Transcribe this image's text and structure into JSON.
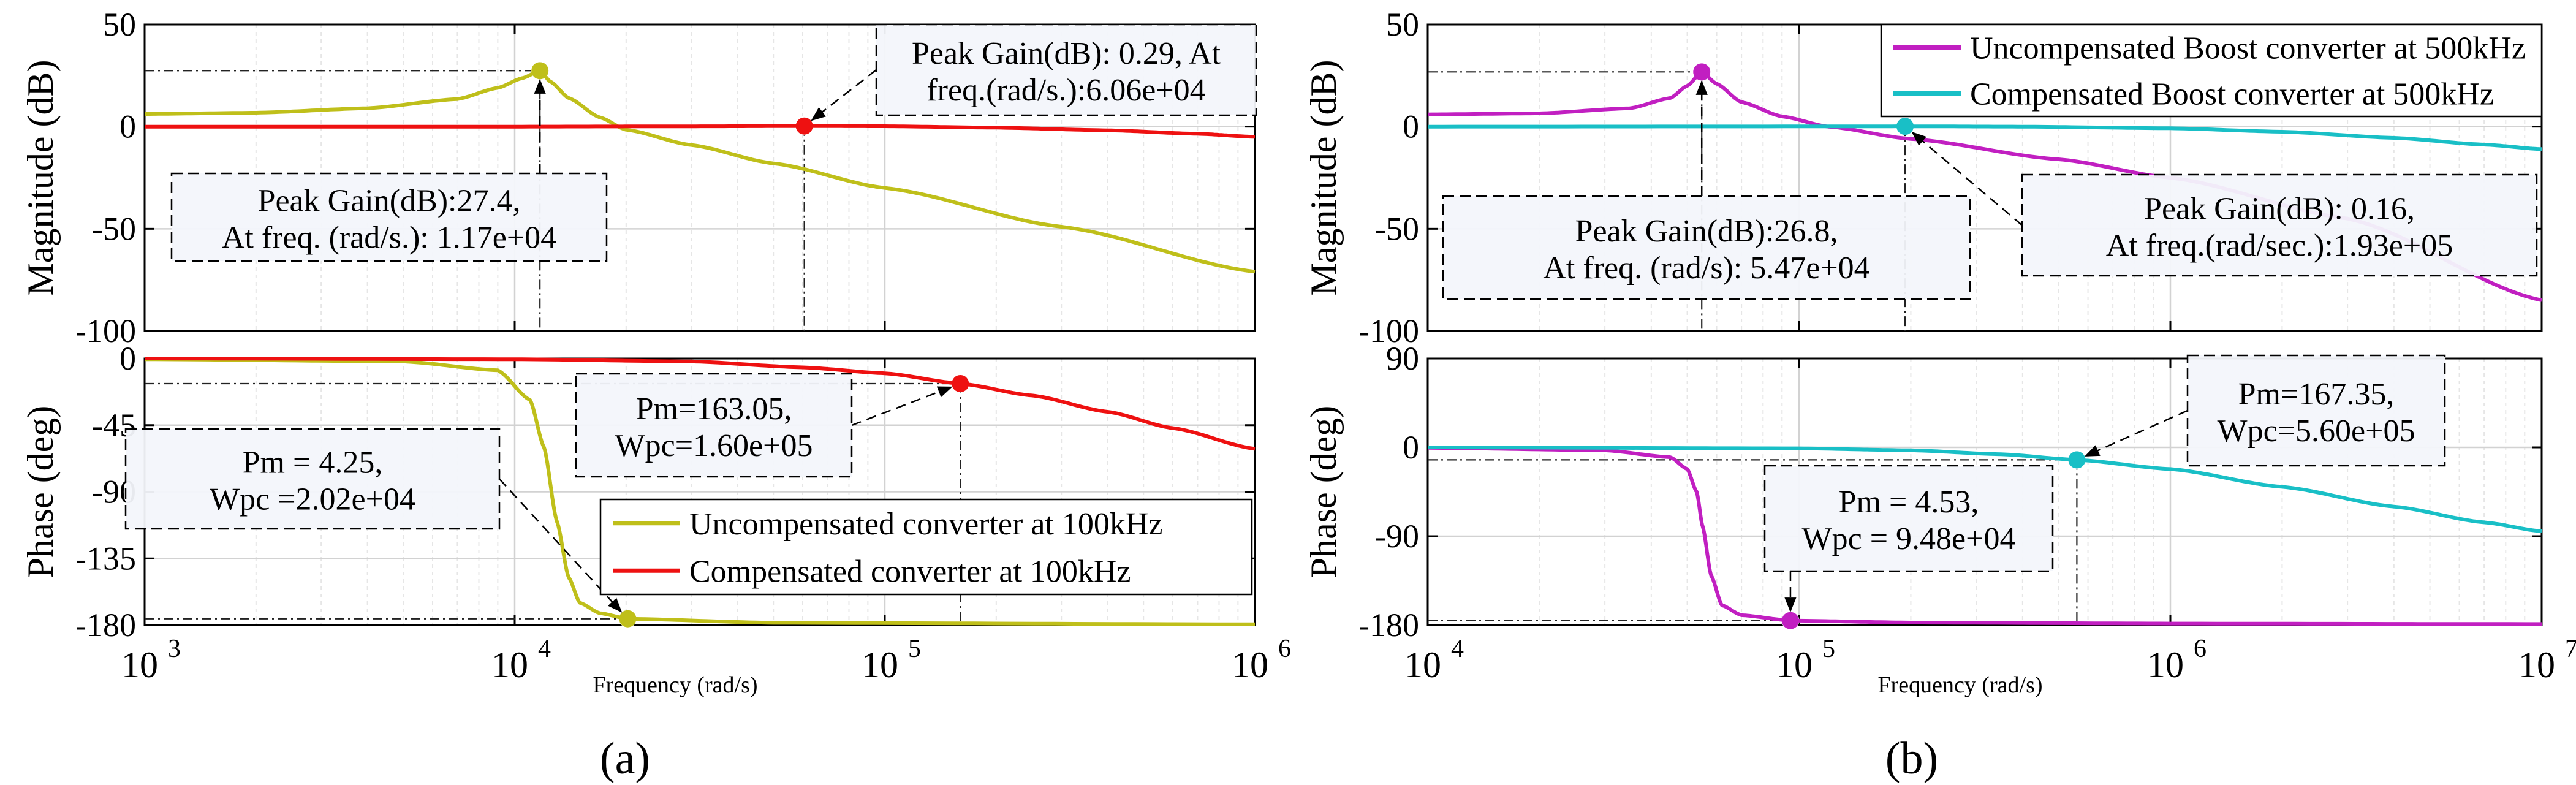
{
  "figure": {
    "panel_labels": [
      "(a)",
      "(b)"
    ],
    "colors": {
      "uncomp_a": "#bfbf1a",
      "comp_a": "#ee1111",
      "uncomp_b": "#c11fc1",
      "comp_b": "#19bfc6",
      "grid": "#dedede",
      "axis": "#000000"
    }
  },
  "chart_data": [
    {
      "id": "a",
      "type": "line",
      "subtype": "bode",
      "panel_label": "(a)",
      "xscale": "log",
      "xlim": [
        1000,
        1000000
      ],
      "xticks": [
        {
          "value": 1000,
          "base": "10",
          "exp": "3"
        },
        {
          "value": 10000,
          "base": "10",
          "exp": "4"
        },
        {
          "value": 100000,
          "base": "10",
          "exp": "5"
        },
        {
          "value": 1000000,
          "base": "10",
          "exp": "6"
        }
      ],
      "xlabel": "Frequency  (rad/s)",
      "legend_location": "lower-right of phase plot",
      "magnitude": {
        "ylabel": "Magnitude (dB)",
        "ylim": [
          -100,
          50
        ],
        "yticks": [
          50,
          0,
          -50,
          -100
        ],
        "series": [
          {
            "name": "Uncompensated converter at 100kHz",
            "color": "#bfbf1a",
            "x": [
              1000,
              2000,
              4000,
              7000,
              9000,
              10500,
              11700,
              12500,
              14000,
              17000,
              20000,
              30000,
              50000,
              100000,
              300000,
              1000000
            ],
            "y": [
              6.2,
              6.8,
              9,
              13.5,
              19,
              23.8,
              27.4,
              22,
              14,
              4.5,
              -1.5,
              -9,
              -18,
              -30,
              -49,
              -71
            ]
          },
          {
            "name": "Compensated converter at 100kHz",
            "color": "#ee1111",
            "x": [
              1000,
              10000,
              30000,
              60600,
              100000,
              200000,
              400000,
              700000,
              1000000
            ],
            "y": [
              0,
              0,
              0.15,
              0.29,
              0.2,
              -0.5,
              -1.8,
              -3.5,
              -5
            ]
          }
        ],
        "markers": [
          {
            "series": 0,
            "x": 11700,
            "y": 27.4
          },
          {
            "series": 1,
            "x": 60600,
            "y": 0.29
          }
        ],
        "annotations": [
          {
            "lines": [
              "Peak Gain(dB):27.4,",
              "At freq. (rad/s.): 1.17e+04"
            ],
            "target": {
              "x": 11700,
              "y": 27.4
            }
          },
          {
            "lines": [
              "Peak Gain(dB): 0.29, At",
              "freq.(rad/s.):6.06e+04"
            ],
            "target": {
              "x": 60600,
              "y": 0.29
            }
          }
        ]
      },
      "phase": {
        "ylabel": "Phase (deg)",
        "ylim": [
          -180,
          0
        ],
        "yticks": [
          0,
          -45,
          -90,
          -135,
          -180
        ],
        "series": [
          {
            "name": "Uncompensated converter at 100kHz",
            "color": "#bfbf1a",
            "x": [
              1000,
              5000,
              9000,
              11000,
              12000,
              13000,
              14000,
              15000,
              17000,
              20200,
              50000,
              1000000
            ],
            "y": [
              -0.5,
              -2,
              -8,
              -28,
              -60,
              -110,
              -148,
              -165,
              -172,
              -175.75,
              -178.5,
              -179.5
            ]
          },
          {
            "name": "Compensated converter at 100kHz",
            "color": "#ee1111",
            "x": [
              1000,
              10000,
              30000,
              60000,
              100000,
              160000,
              250000,
              400000,
              600000,
              1000000
            ],
            "y": [
              0,
              -0.5,
              -2,
              -6,
              -10,
              -16.95,
              -25,
              -36,
              -47,
              -61
            ]
          }
        ],
        "markers": [
          {
            "series": 0,
            "x": 20200,
            "y": -175.75
          },
          {
            "series": 1,
            "x": 160000,
            "y": -16.95
          }
        ],
        "annotations": [
          {
            "lines": [
              "Pm = 4.25,",
              "Wpc =2.02e+04"
            ],
            "target": {
              "x": 20200,
              "y": -175.75
            }
          },
          {
            "lines": [
              "Pm=163.05,",
              "Wpc=1.60e+05"
            ],
            "target": {
              "x": 160000,
              "y": -16.95
            }
          }
        ]
      }
    },
    {
      "id": "b",
      "type": "line",
      "subtype": "bode",
      "panel_label": "(b)",
      "xscale": "log",
      "xlim": [
        10000,
        10000000
      ],
      "xticks": [
        {
          "value": 10000,
          "base": "10",
          "exp": "4"
        },
        {
          "value": 100000,
          "base": "10",
          "exp": "5"
        },
        {
          "value": 1000000,
          "base": "10",
          "exp": "6"
        },
        {
          "value": 10000000,
          "base": "10",
          "exp": "7"
        }
      ],
      "xlabel": "Frequency  (rad/s)",
      "legend_location": "top-right of magnitude plot",
      "magnitude": {
        "ylabel": "Magnitude (dB)",
        "ylim": [
          -100,
          50
        ],
        "yticks": [
          50,
          0,
          -50,
          -100
        ],
        "series": [
          {
            "name": "Uncompensated Boost converter at 500kHz",
            "color": "#c11fc1",
            "x": [
              10000,
              20000,
              35000,
              45000,
              50000,
              54700,
              60000,
              70000,
              90000,
              120000,
              200000,
              500000,
              1000000,
              3000000,
              10000000
            ],
            "y": [
              6,
              6.5,
              9,
              14,
              20,
              26.8,
              21,
              12,
              5,
              0,
              -6,
              -16,
              -25,
              -45,
              -85
            ]
          },
          {
            "name": "Compensated Boost converter at 500kHz",
            "color": "#19bfc6",
            "x": [
              10000,
              100000,
              193000,
              400000,
              1000000,
              2000000,
              4000000,
              7000000,
              10000000
            ],
            "y": [
              0,
              0.1,
              0.16,
              0,
              -0.8,
              -2.5,
              -5.5,
              -8.8,
              -11
            ]
          }
        ],
        "markers": [
          {
            "series": 0,
            "x": 54700,
            "y": 26.8
          },
          {
            "series": 1,
            "x": 193000,
            "y": 0.16
          }
        ],
        "annotations": [
          {
            "lines": [
              "Peak Gain(dB):26.8,",
              "At freq. (rad/s): 5.47e+04"
            ],
            "target": {
              "x": 54700,
              "y": 26.8
            }
          },
          {
            "lines": [
              "Peak Gain(dB): 0.16,",
              "At freq.(rad/sec.):1.93e+05"
            ],
            "target": {
              "x": 193000,
              "y": 0.16
            }
          }
        ]
      },
      "phase": {
        "ylabel": "Phase (deg)",
        "ylim": [
          -180,
          90
        ],
        "yticks": [
          90,
          0,
          -90,
          -180
        ],
        "series": [
          {
            "name": "Uncompensated Boost converter at 500kHz",
            "color": "#c11fc1",
            "x": [
              10000,
              30000,
              45000,
              50000,
              53000,
              55000,
              58000,
              62000,
              70000,
              94800,
              200000,
              1000000,
              10000000
            ],
            "y": [
              -0.5,
              -3,
              -10,
              -22,
              -45,
              -80,
              -130,
              -160,
              -170,
              -175.47,
              -177.5,
              -178.5,
              -179
            ]
          },
          {
            "name": "Compensated Boost converter at 500kHz",
            "color": "#19bfc6",
            "x": [
              10000,
              100000,
              200000,
              350000,
              560000,
              1000000,
              2000000,
              4000000,
              7000000,
              10000000
            ],
            "y": [
              0,
              -1,
              -3,
              -7,
              -12.65,
              -22,
              -40,
              -60,
              -76,
              -85
            ]
          }
        ],
        "markers": [
          {
            "series": 0,
            "x": 94800,
            "y": -175.47
          },
          {
            "series": 1,
            "x": 560000,
            "y": -12.65
          }
        ],
        "annotations": [
          {
            "lines": [
              "Pm = 4.53,",
              "Wpc = 9.48e+04"
            ],
            "target": {
              "x": 94800,
              "y": -175.47
            }
          },
          {
            "lines": [
              "Pm=167.35,",
              "Wpc=5.60e+05"
            ],
            "target": {
              "x": 560000,
              "y": -12.65
            }
          }
        ]
      }
    }
  ]
}
